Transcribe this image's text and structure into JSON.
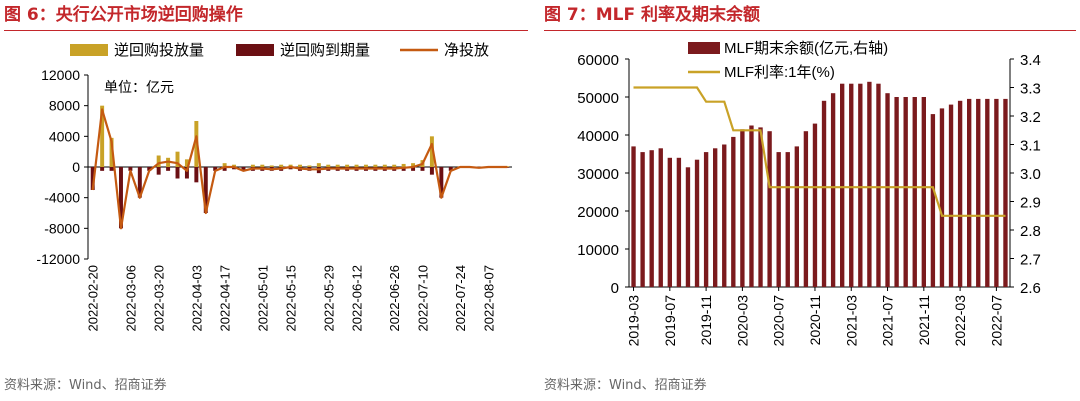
{
  "left": {
    "title": "图 6：央行公开市场逆回购操作",
    "source": "资料来源：Wind、招商证券",
    "unit_note": "单位：亿元",
    "colors": {
      "injection": "#c9a227",
      "maturity": "#6b0f13",
      "net": "#c55a11"
    }
  },
  "right": {
    "title": "图 7：MLF 利率及期末余额",
    "source": "资料来源：Wind、招商证券",
    "colors": {
      "balance": "#7b1a1d",
      "rate": "#c9a227"
    }
  },
  "chart_data": [
    {
      "type": "bar",
      "id": "reverse-repo",
      "title": "央行公开市场逆回购操作",
      "series": [
        {
          "name": "逆回购投放量",
          "values": [
            0,
            8000,
            3800,
            0,
            0,
            0,
            0,
            1500,
            1200,
            2000,
            1000,
            6000,
            0,
            0,
            500,
            300,
            0,
            300,
            300,
            200,
            300,
            300,
            300,
            200,
            500,
            300,
            300,
            300,
            300,
            300,
            300,
            300,
            300,
            400,
            500,
            900,
            4000,
            0,
            0,
            100,
            100,
            0,
            100,
            100,
            100
          ]
        },
        {
          "name": "逆回购到期量",
          "values": [
            -3000,
            -500,
            -500,
            -8000,
            -500,
            -4000,
            -500,
            -1000,
            -500,
            -1500,
            -1500,
            -2000,
            -6000,
            -500,
            -500,
            -300,
            -500,
            -500,
            -500,
            -500,
            -500,
            -300,
            -500,
            -500,
            -800,
            -500,
            -500,
            -500,
            -500,
            -500,
            -500,
            -500,
            -500,
            -500,
            -500,
            -500,
            -1000,
            -4000,
            -500,
            -100,
            -100,
            -100,
            -100,
            -100,
            -100
          ]
        },
        {
          "name": "净投放",
          "type": "line",
          "values": [
            -3000,
            7500,
            3300,
            -8000,
            -500,
            -4000,
            -500,
            500,
            700,
            500,
            -500,
            4000,
            -6000,
            -500,
            0,
            0,
            -500,
            -200,
            -200,
            -300,
            -200,
            0,
            -200,
            -300,
            -300,
            -200,
            -200,
            -200,
            -200,
            -200,
            -200,
            -200,
            -200,
            -100,
            0,
            400,
            3000,
            -4000,
            -500,
            0,
            0,
            -100,
            0,
            0,
            0
          ]
        }
      ],
      "x_ticks": [
        "2022-02-20",
        "2022-03-06",
        "2022-03-20",
        "2022-04-03",
        "2022-04-17",
        "2022-05-01",
        "2022-05-15",
        "2022-05-29",
        "2022-06-12",
        "2022-06-26",
        "2022-07-10",
        "2022-07-24",
        "2022-08-07"
      ],
      "y_ticks": [
        "12000",
        "8000",
        "4000",
        "0",
        "-4000",
        "-8000",
        "-12000"
      ],
      "ylim": [
        -12000,
        12000
      ],
      "legend": [
        "逆回购投放量",
        "逆回购到期量",
        "净投放"
      ]
    },
    {
      "type": "bar",
      "id": "mlf",
      "title": "MLF 利率及期末余额",
      "series": [
        {
          "name": "MLF期末余额(亿元,右轴)",
          "axis": "left",
          "values": [
            37000,
            35500,
            36000,
            36500,
            34000,
            34000,
            31500,
            33500,
            35500,
            36500,
            37500,
            39500,
            41500,
            42500,
            42000,
            41000,
            35500,
            35500,
            37000,
            41000,
            43000,
            49000,
            51000,
            53500,
            53500,
            53500,
            54000,
            53500,
            51000,
            50000,
            50000,
            50000,
            50000,
            45500,
            47000,
            48000,
            49000,
            49500,
            49500,
            49500,
            49500,
            49500
          ]
        },
        {
          "name": "MLF利率:1年(%)",
          "type": "line",
          "axis": "right",
          "values": [
            3.3,
            3.3,
            3.3,
            3.3,
            3.3,
            3.3,
            3.3,
            3.3,
            3.25,
            3.25,
            3.25,
            3.15,
            3.15,
            3.15,
            3.15,
            2.95,
            2.95,
            2.95,
            2.95,
            2.95,
            2.95,
            2.95,
            2.95,
            2.95,
            2.95,
            2.95,
            2.95,
            2.95,
            2.95,
            2.95,
            2.95,
            2.95,
            2.95,
            2.95,
            2.85,
            2.85,
            2.85,
            2.85,
            2.85,
            2.85,
            2.85,
            2.85
          ]
        }
      ],
      "x_ticks": [
        "2019-03",
        "2019-07",
        "2019-11",
        "2020-03",
        "2020-07",
        "2020-11",
        "2021-03",
        "2021-07",
        "2021-11",
        "2022-03",
        "2022-07"
      ],
      "y_ticks": [
        "60000",
        "50000",
        "40000",
        "30000",
        "20000",
        "10000",
        "0"
      ],
      "y2_ticks": [
        "3.4",
        "3.3",
        "3.2",
        "3.1",
        "3.0",
        "2.9",
        "2.8",
        "2.7",
        "2.6"
      ],
      "ylim": [
        0,
        60000
      ],
      "y2lim": [
        2.6,
        3.4
      ],
      "legend": [
        "MLF期末余额(亿元,右轴)",
        "MLF利率:1年(%)"
      ]
    }
  ]
}
